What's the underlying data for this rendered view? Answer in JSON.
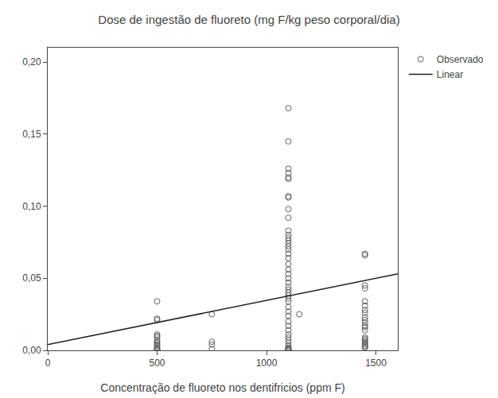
{
  "chart_data": {
    "type": "scatter",
    "title": "Dose de ingestão de fluoreto (mg F/kg peso corporal/dia)",
    "xlabel": "Concentração de fluoreto nos dentifricios (ppm F)",
    "xlim": [
      0,
      1600
    ],
    "ylim": [
      0.0,
      0.21
    ],
    "xticks": [
      0,
      500,
      1000,
      1500
    ],
    "yticks": [
      {
        "value": 0.0,
        "label": "0,00"
      },
      {
        "value": 0.05,
        "label": "0,05"
      },
      {
        "value": 0.1,
        "label": "0,10"
      },
      {
        "value": 0.15,
        "label": "0,15"
      },
      {
        "value": 0.2,
        "label": "0,20"
      }
    ],
    "grid": false,
    "legend": "upper right",
    "series": [
      {
        "name": "Observado",
        "type": "scatter",
        "marker": "circle-open",
        "color": "#606060",
        "x": [
          500,
          500,
          500,
          500,
          500,
          500,
          500,
          500,
          500,
          500,
          500,
          500,
          500,
          500,
          500,
          500,
          750,
          750,
          750,
          750,
          1100,
          1100,
          1100,
          1100,
          1100,
          1100,
          1100,
          1100,
          1100,
          1100,
          1100,
          1100,
          1100,
          1100,
          1100,
          1100,
          1100,
          1100,
          1100,
          1100,
          1100,
          1100,
          1100,
          1100,
          1100,
          1100,
          1100,
          1100,
          1100,
          1100,
          1100,
          1100,
          1100,
          1100,
          1100,
          1100,
          1100,
          1100,
          1100,
          1100,
          1100,
          1100,
          1100,
          1100,
          1100,
          1100,
          1100,
          1100,
          1150,
          1450,
          1450,
          1450,
          1450,
          1450,
          1450,
          1450,
          1450,
          1450,
          1450,
          1450,
          1450,
          1450,
          1450,
          1450,
          1450,
          1450,
          1450,
          1450,
          1450,
          1450,
          1450,
          1450
        ],
        "values": [
          0.034,
          0.022,
          0.021,
          0.011,
          0.01,
          0.009,
          0.007,
          0.006,
          0.005,
          0.004,
          0.003,
          0.002,
          0.001,
          0.001,
          0.0005,
          0.0005,
          0.025,
          0.006,
          0.004,
          0.001,
          0.168,
          0.145,
          0.126,
          0.123,
          0.12,
          0.119,
          0.107,
          0.106,
          0.098,
          0.092,
          0.083,
          0.08,
          0.078,
          0.076,
          0.074,
          0.072,
          0.07,
          0.067,
          0.064,
          0.06,
          0.056,
          0.053,
          0.05,
          0.047,
          0.044,
          0.042,
          0.04,
          0.038,
          0.036,
          0.034,
          0.03,
          0.027,
          0.024,
          0.02,
          0.017,
          0.014,
          0.011,
          0.009,
          0.007,
          0.005,
          0.003,
          0.002,
          0.001,
          0.001,
          0.0008,
          0.0006,
          0.0004,
          0.0002,
          0.025,
          0.067,
          0.066,
          0.045,
          0.043,
          0.034,
          0.031,
          0.028,
          0.026,
          0.023,
          0.021,
          0.019,
          0.017,
          0.016,
          0.014,
          0.009,
          0.008,
          0.007,
          0.006,
          0.005,
          0.004,
          0.003,
          0.002,
          0.002
        ]
      },
      {
        "name": "Linear",
        "type": "line",
        "color": "#222222",
        "x": [
          0,
          1600
        ],
        "values": [
          0.004,
          0.053
        ]
      }
    ]
  }
}
